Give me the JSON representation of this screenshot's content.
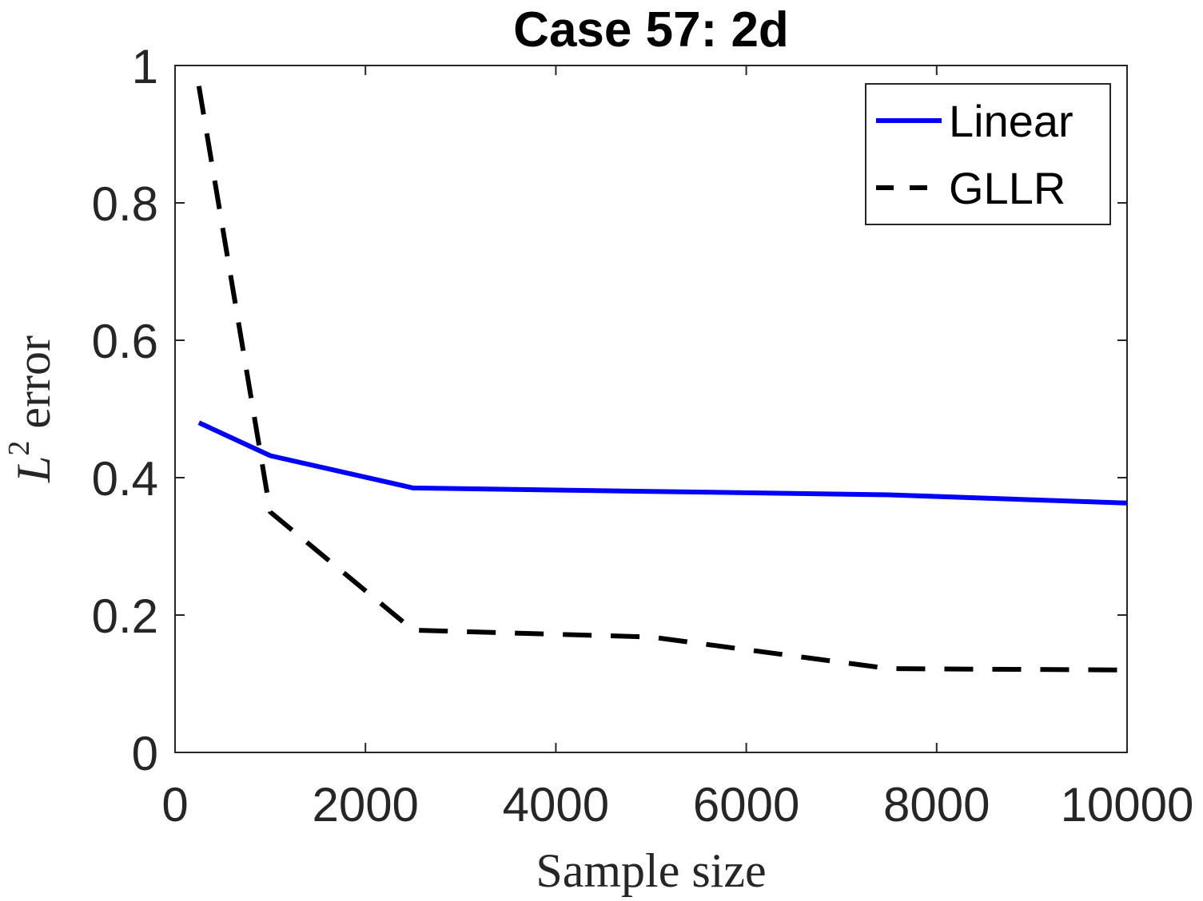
{
  "chart_data": {
    "type": "line",
    "title": "Case 57: 2d",
    "xlabel": "Sample size",
    "ylabel": {
      "base": "L",
      "superscript": "2",
      "rest": " error"
    },
    "xlim": [
      0,
      10000
    ],
    "ylim": [
      0,
      1
    ],
    "xticks": [
      0,
      2000,
      4000,
      6000,
      8000,
      10000
    ],
    "xtick_labels": [
      "0",
      "2000",
      "4000",
      "6000",
      "8000",
      "10000"
    ],
    "yticks": [
      0,
      0.2,
      0.4,
      0.6,
      0.8,
      1
    ],
    "ytick_labels": [
      "0",
      "0.2",
      "0.4",
      "0.6",
      "0.8",
      "1"
    ],
    "grid": false,
    "legend_position": "top-right",
    "series": [
      {
        "name": "Linear",
        "color": "#0000ff",
        "style": "solid",
        "x": [
          250,
          1000,
          2500,
          5000,
          7500,
          10000
        ],
        "y": [
          0.48,
          0.432,
          0.385,
          0.38,
          0.375,
          0.363
        ]
      },
      {
        "name": "GLLR",
        "color": "#000000",
        "style": "dashed",
        "x": [
          250,
          1000,
          2500,
          5000,
          7500,
          10000
        ],
        "y": [
          0.97,
          0.35,
          0.178,
          0.168,
          0.122,
          0.12
        ]
      }
    ]
  }
}
